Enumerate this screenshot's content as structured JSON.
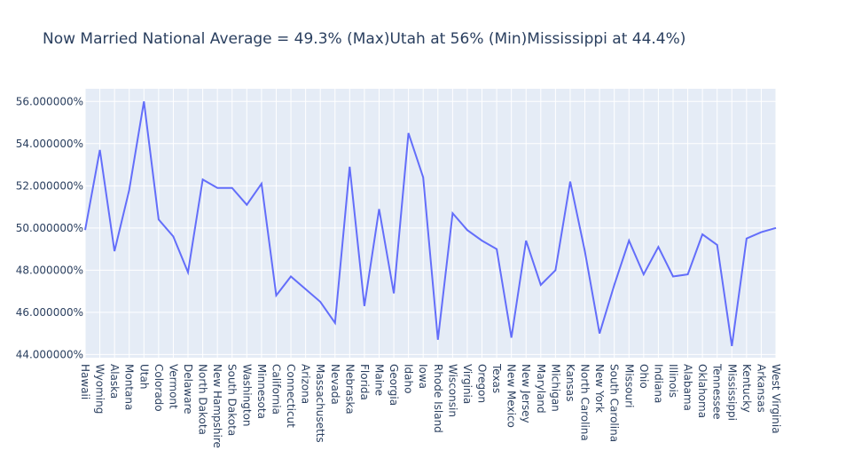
{
  "chart_data": {
    "type": "line",
    "title": "Now Married National Average = 49.3%  (Max)Utah at 56%  (Min)Mississippi at 44.4%)",
    "xlabel": "",
    "ylabel": "",
    "ylim": [
      43.85,
      56.6
    ],
    "yticks": [
      44,
      46,
      48,
      50,
      52,
      54,
      56
    ],
    "ytick_labels": [
      "44.000000%",
      "46.000000%",
      "48.000000%",
      "50.000000%",
      "52.000000%",
      "54.000000%",
      "56.000000%"
    ],
    "grid": true,
    "line_color": "#636efa",
    "plot_bg": "#e5ecf6",
    "categories": [
      "Hawaii",
      "Wyoming",
      "Alaska",
      "Montana",
      "Utah",
      "Colorado",
      "Vermont",
      "Delaware",
      "North Dakota",
      "New Hampshire",
      "South Dakota",
      "Washington",
      "Minnesota",
      "California",
      "Connecticut",
      "Arizona",
      "Massachusetts",
      "Nevada",
      "Nebraska",
      "Florida",
      "Maine",
      "Georgia",
      "Idaho",
      "Iowa",
      "Rhode Island",
      "Wisconsin",
      "Virginia",
      "Oregon",
      "Texas",
      "New Mexico",
      "New Jersey",
      "Maryland",
      "Michigan",
      "Kansas",
      "North Carolina",
      "New York",
      "South Carolina",
      "Missouri",
      "Ohio",
      "Indiana",
      "Illinois",
      "Alabama",
      "Oklahoma",
      "Tennessee",
      "Mississippi",
      "Kentucky",
      "Arkansas",
      "West Virginia"
    ],
    "series": [
      {
        "values": [
          49.9,
          53.7,
          48.9,
          51.8,
          56.0,
          50.4,
          49.6,
          47.9,
          52.3,
          51.9,
          51.9,
          51.1,
          52.1,
          46.8,
          47.7,
          47.1,
          46.5,
          45.5,
          52.9,
          46.3,
          50.9,
          46.9,
          54.5,
          52.4,
          44.7,
          50.7,
          49.9,
          49.4,
          49.0,
          44.8,
          49.4,
          47.3,
          48.0,
          52.2,
          48.9,
          45.0,
          47.3,
          49.4,
          47.8,
          49.1,
          47.7,
          47.8,
          49.7,
          49.2,
          44.4,
          49.5,
          49.8,
          50.0
        ]
      }
    ]
  }
}
